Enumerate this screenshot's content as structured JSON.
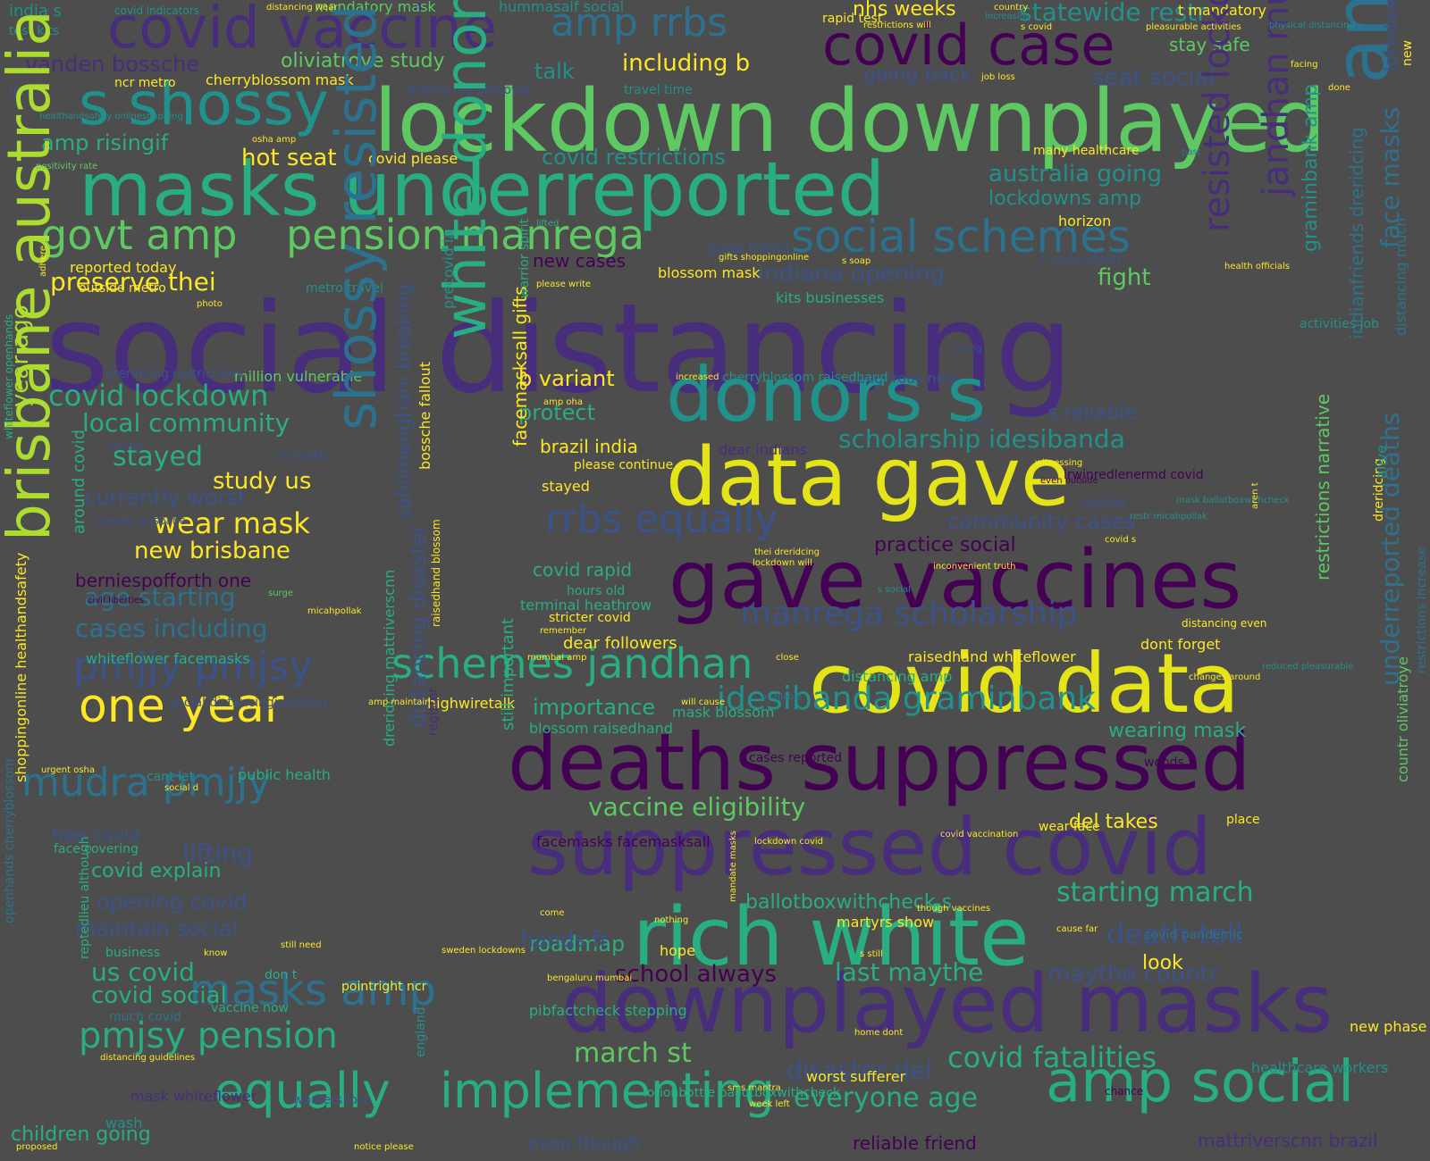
{
  "background": "#4d4d4d",
  "palette": {
    "purple": "#440154",
    "indigo": "#472d7b",
    "blue": "#3b528b",
    "steel": "#2c728e",
    "teal": "#21918c",
    "sea": "#28ae80",
    "green": "#5ec962",
    "lime": "#addc30",
    "yellow": "#e5e419",
    "gold": "#fde725"
  },
  "words": [
    {
      "text": "social distancing"
    },
    {
      "text": "lockdown downplayed"
    },
    {
      "text": "masks underreported"
    },
    {
      "text": "data gave"
    },
    {
      "text": "gave vaccines"
    },
    {
      "text": "covid data"
    },
    {
      "text": "deaths suppressed"
    },
    {
      "text": "suppressed covid"
    },
    {
      "text": "rich white"
    },
    {
      "text": "downplayed masks"
    },
    {
      "text": "amp social"
    },
    {
      "text": "donors s"
    },
    {
      "text": "s shossy"
    },
    {
      "text": "covid vaccine"
    },
    {
      "text": "covid case"
    },
    {
      "text": "govt amp"
    },
    {
      "text": "pension manrega"
    },
    {
      "text": "social schemes"
    },
    {
      "text": "schemes jandhan"
    },
    {
      "text": "implementing"
    },
    {
      "text": "equally"
    },
    {
      "text": "one year"
    },
    {
      "text": "mudra pmjjy"
    },
    {
      "text": "pmjjy pmjsy"
    },
    {
      "text": "masks amp"
    },
    {
      "text": "pmjsy pension"
    },
    {
      "text": "idesibanda graminbank"
    },
    {
      "text": "manrega scholarship"
    },
    {
      "text": "rrbs equally"
    },
    {
      "text": "amp rrbs"
    },
    {
      "text": "scholarship idesibanda"
    },
    {
      "text": "covid fatalities"
    },
    {
      "text": "everyone age"
    },
    {
      "text": "last maythe"
    },
    {
      "text": "maythe countr"
    },
    {
      "text": "starting march"
    },
    {
      "text": "death toll"
    },
    {
      "text": "march st"
    },
    {
      "text": "vaccine eligibility"
    },
    {
      "text": "disaster del"
    },
    {
      "text": "school always"
    },
    {
      "text": "roadmap"
    },
    {
      "text": "covid lockdown"
    },
    {
      "text": "local community"
    },
    {
      "text": "stayed"
    },
    {
      "text": "study us"
    },
    {
      "text": "wear mask"
    },
    {
      "text": "new brisbane"
    },
    {
      "text": "currently worst"
    },
    {
      "text": "age starting"
    },
    {
      "text": "cases including"
    },
    {
      "text": "hot seat"
    },
    {
      "text": "preserve thei"
    },
    {
      "text": "amp risingif"
    },
    {
      "text": "vanden bossche"
    },
    {
      "text": "oliviatroye study"
    },
    {
      "text": "including b"
    },
    {
      "text": "cherryblossom mask"
    },
    {
      "text": "nhs weeks"
    },
    {
      "text": "statewide restr"
    },
    {
      "text": "stay safe"
    },
    {
      "text": "going back"
    },
    {
      "text": "seat social"
    },
    {
      "text": "covid restrictions"
    },
    {
      "text": "australia going"
    },
    {
      "text": "lockdowns amp"
    },
    {
      "text": "horizon"
    },
    {
      "text": "indiana opening"
    },
    {
      "text": "fight"
    },
    {
      "text": "new cases"
    },
    {
      "text": "blossom mask"
    },
    {
      "text": "b variant"
    },
    {
      "text": "protect"
    },
    {
      "text": "brazil india"
    },
    {
      "text": "community cases"
    },
    {
      "text": "practice social"
    },
    {
      "text": "s reliable"
    },
    {
      "text": "covid rapid"
    },
    {
      "text": "terminal heathrow"
    },
    {
      "text": "raisedhand whiteflower"
    },
    {
      "text": "dont forget"
    },
    {
      "text": "importance"
    },
    {
      "text": "wearing mask"
    },
    {
      "text": "blossom raisedhand"
    },
    {
      "text": "ballotboxwithcheck s"
    },
    {
      "text": "del takes"
    },
    {
      "text": "martyrs show"
    },
    {
      "text": "hope"
    },
    {
      "text": "look"
    },
    {
      "text": "highwiretalk"
    },
    {
      "text": "public health"
    },
    {
      "text": "covid explain"
    },
    {
      "text": "opening covid"
    },
    {
      "text": "maintain social"
    },
    {
      "text": "us covid"
    },
    {
      "text": "covid social"
    },
    {
      "text": "children going"
    },
    {
      "text": "mask whiteflower"
    },
    {
      "text": "free covid"
    },
    {
      "text": "lifting"
    },
    {
      "text": "whiteflower facemasks"
    },
    {
      "text": "berniespofforth one"
    },
    {
      "text": "million vulnerable"
    },
    {
      "text": "talk"
    },
    {
      "text": "india s"
    },
    {
      "text": "test kits"
    },
    {
      "text": "live"
    },
    {
      "text": "mandatory mask"
    },
    {
      "text": "hummasaif social"
    },
    {
      "text": "rapid test"
    },
    {
      "text": "t mandatory"
    },
    {
      "text": "ncr metro"
    },
    {
      "text": "covid please"
    },
    {
      "text": "reported today"
    },
    {
      "text": "outside metro"
    },
    {
      "text": "metro travel"
    },
    {
      "text": "kits businesses"
    },
    {
      "text": "good friend"
    },
    {
      "text": "many healthcare"
    },
    {
      "text": "stayed"
    },
    {
      "text": "please continue"
    },
    {
      "text": "hours old"
    },
    {
      "text": "stricter covid"
    },
    {
      "text": "dear followers"
    },
    {
      "text": "v"
    },
    {
      "text": "mask blossom"
    },
    {
      "text": "cases reported"
    },
    {
      "text": "facemasks facemasksall"
    },
    {
      "text": "irwinredlenermd covid"
    },
    {
      "text": "wear face"
    },
    {
      "text": "place"
    },
    {
      "text": "even though"
    },
    {
      "text": "reliable friend"
    },
    {
      "text": "mattriverscnn brazil"
    },
    {
      "text": "worst sufferer"
    },
    {
      "text": "new phase"
    },
    {
      "text": "wash"
    },
    {
      "text": "business"
    },
    {
      "text": "vaccine now"
    },
    {
      "text": "pointright ncr"
    },
    {
      "text": "don t"
    },
    {
      "text": "much covid"
    },
    {
      "text": "cant let"
    },
    {
      "text": "woods"
    },
    {
      "text": "healthcare workers"
    },
    {
      "text": "covid pandemic"
    },
    {
      "text": "travel time"
    },
    {
      "text": "distancing precovid"
    },
    {
      "text": "dear indians"
    },
    {
      "text": "dangerous new"
    },
    {
      "text": "cherryblossom raisedhand"
    },
    {
      "text": "distancing amp"
    },
    {
      "text": "distancing even"
    },
    {
      "text": "around covid"
    },
    {
      "text": "year ago"
    },
    {
      "text": "brisbane australia"
    },
    {
      "text": "shossy resisted"
    },
    {
      "text": "white donors"
    },
    {
      "text": "resisted lockdown"
    },
    {
      "text": "jandhan mudra amp"
    },
    {
      "text": "graminbank amp"
    },
    {
      "text": "restrictions narrative"
    },
    {
      "text": "amp restrictions"
    },
    {
      "text": "underreported deaths"
    },
    {
      "text": "lockdown restriction"
    },
    {
      "text": "face masks"
    },
    {
      "text": "new"
    },
    {
      "text": "indianfriends dreridcing"
    },
    {
      "text": "dreridcing"
    },
    {
      "text": "countr oliviatroye"
    },
    {
      "text": "distancing much"
    },
    {
      "text": "restrictions increase"
    },
    {
      "text": "sahilmenghani breaking"
    },
    {
      "text": "distancing disaster"
    },
    {
      "text": "bossche fallout"
    },
    {
      "text": "precovid la"
    },
    {
      "text": "facemasksall gifts"
    },
    {
      "text": "warrior spirit"
    },
    {
      "text": "still important"
    },
    {
      "text": "dreridcing mattriverscnn"
    },
    {
      "text": "openhands cherryblossom"
    },
    {
      "text": "whiteflower openhands"
    },
    {
      "text": "shoppingonline healthandsafety"
    },
    {
      "text": "reptedlieu although"
    },
    {
      "text": "england"
    },
    {
      "text": "register"
    },
    {
      "text": "raisedhand blossom"
    },
    {
      "text": "social distancingisolation"
    },
    {
      "text": "covid indicators"
    },
    {
      "text": "distancing wear"
    },
    {
      "text": "country"
    },
    {
      "text": "restrictions will"
    },
    {
      "text": "increasing"
    },
    {
      "text": "s covid"
    },
    {
      "text": "pleasurable activities"
    },
    {
      "text": "physical distancing"
    },
    {
      "text": "facing"
    },
    {
      "text": "done"
    },
    {
      "text": "job loss"
    },
    {
      "text": "osha amp"
    },
    {
      "text": "positivity rate"
    },
    {
      "text": "healthandsafety onlineshopping"
    },
    {
      "text": "past"
    },
    {
      "text": "lifted"
    },
    {
      "text": "s soap"
    },
    {
      "text": "health officials"
    },
    {
      "text": "gifts shoppingonline"
    },
    {
      "text": "please write"
    },
    {
      "text": "t understand"
    },
    {
      "text": "activities job"
    },
    {
      "text": "adhere"
    },
    {
      "text": "photo"
    },
    {
      "text": "saving"
    },
    {
      "text": "increased"
    },
    {
      "text": "amp oha"
    },
    {
      "text": "rising"
    },
    {
      "text": "versus"
    },
    {
      "text": "m mask"
    },
    {
      "text": "witnessing"
    },
    {
      "text": "even outside"
    },
    {
      "text": "spread"
    },
    {
      "text": "mask ballotboxwithcheck"
    },
    {
      "text": "restr micahpollak"
    },
    {
      "text": "aren t"
    },
    {
      "text": "covid s"
    },
    {
      "text": "inconvenient truth"
    },
    {
      "text": "thei dreridcing"
    },
    {
      "text": "lockdown will"
    },
    {
      "text": "s social"
    },
    {
      "text": "greater brisbane"
    },
    {
      "text": "civil liberties"
    },
    {
      "text": "surge"
    },
    {
      "text": "micahpollak"
    },
    {
      "text": "remember"
    },
    {
      "text": "mumbai amp"
    },
    {
      "text": "close"
    },
    {
      "text": "reduced pleasurable"
    },
    {
      "text": "changes around"
    },
    {
      "text": "amp maintain"
    },
    {
      "text": "will cause"
    },
    {
      "text": "available"
    },
    {
      "text": "urgent osha"
    },
    {
      "text": "social d"
    },
    {
      "text": "lockdown covid"
    },
    {
      "text": "covid vaccination"
    },
    {
      "text": "come"
    },
    {
      "text": "nothing"
    },
    {
      "text": "mandate masks"
    },
    {
      "text": "sweden lockdowns"
    },
    {
      "text": "bengaluru mumbai"
    },
    {
      "text": "s still"
    },
    {
      "text": "cause far"
    },
    {
      "text": "though vaccines"
    },
    {
      "text": "home dont"
    },
    {
      "text": "still need"
    },
    {
      "text": "know"
    },
    {
      "text": "face covering"
    },
    {
      "text": "distancing guidelines"
    },
    {
      "text": "workers lost"
    },
    {
      "text": "sms mantra"
    },
    {
      "text": "week left"
    },
    {
      "text": "notice please"
    },
    {
      "text": "proposed"
    },
    {
      "text": "lotionbottle ballotboxwithcheck"
    },
    {
      "text": "pibfactcheck stepping"
    },
    {
      "text": "hands fr"
    },
    {
      "text": "chance"
    },
    {
      "text": "alive"
    },
    {
      "text": "dreridcing restrictions"
    },
    {
      "text": "new hospitalizations"
    },
    {
      "text": "friends deaths"
    }
  ]
}
